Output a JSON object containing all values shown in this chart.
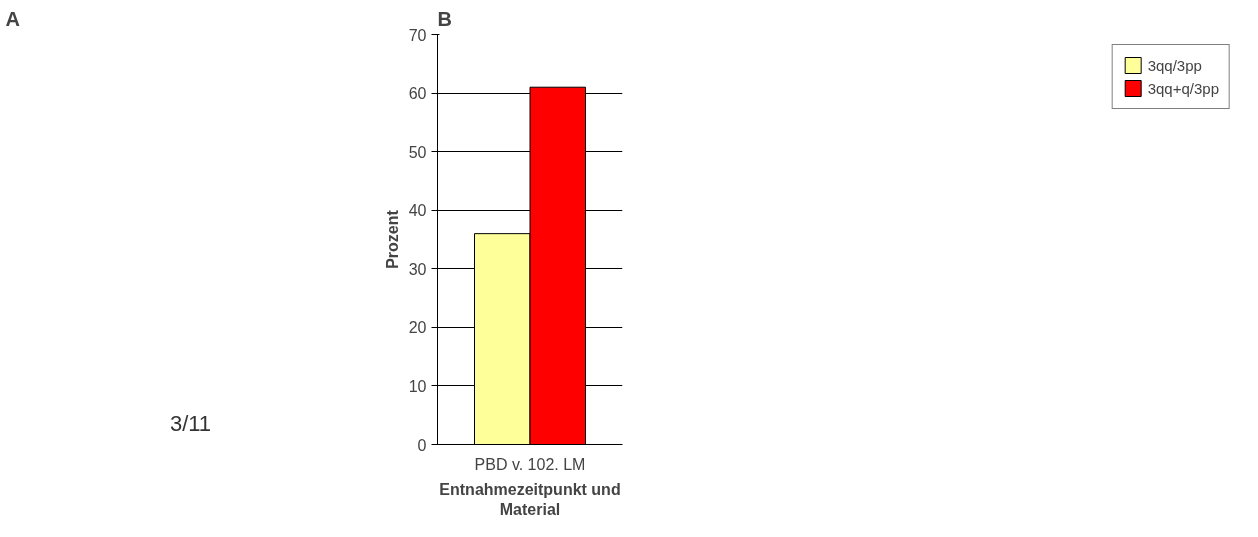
{
  "chart_data": [
    {
      "type": "other",
      "title": "A",
      "annotations": [
        "3/11"
      ]
    },
    {
      "type": "bar",
      "title": "B",
      "categories": [
        "PBD v. 102. LM"
      ],
      "series": [
        {
          "name": "3qq/3pp",
          "color": "#ffff99",
          "values": [
            36
          ]
        },
        {
          "name": "3qq+q/3pp",
          "color": "#ff0000",
          "values": [
            61
          ]
        }
      ],
      "ylabel": "Prozent",
      "xlabel": "Entnahmezeitpunkt und\nMaterial",
      "ylim": [
        0,
        70
      ],
      "yticks": [
        0,
        10,
        20,
        30,
        40,
        50,
        60,
        70
      ],
      "grid": "y",
      "legend": "right"
    }
  ]
}
